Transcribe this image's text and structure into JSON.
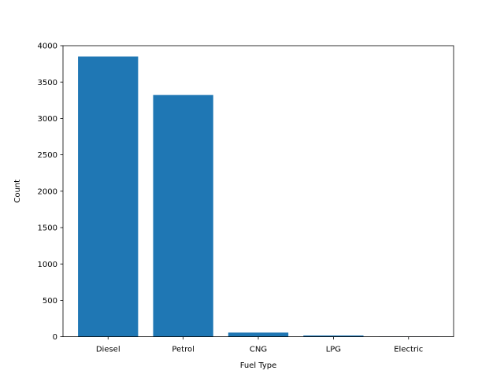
{
  "chart_data": {
    "type": "bar",
    "title": "",
    "xlabel": "Fuel Type",
    "ylabel": "Count",
    "categories": [
      "Diesel",
      "Petrol",
      "CNG",
      "LPG",
      "Electric"
    ],
    "values": [
      3852,
      3322,
      57,
      17,
      2
    ],
    "ylim": [
      0,
      4000
    ],
    "yticks": [
      0,
      500,
      1000,
      1500,
      2000,
      2500,
      3000,
      3500,
      4000
    ],
    "grid": false,
    "bar_color": "#1f77b4"
  }
}
